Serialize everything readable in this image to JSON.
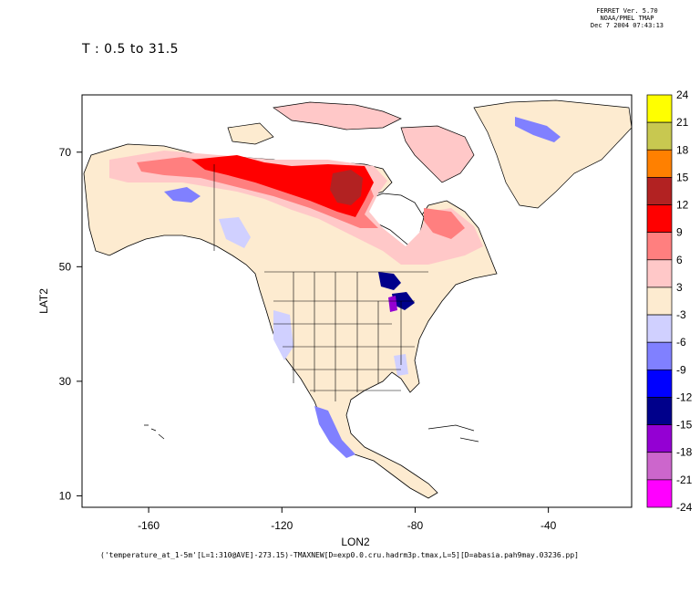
{
  "header": {
    "line1": "FERRET Ver. 5.70",
    "line2": "NOAA/PMEL TMAP",
    "line3": "Dec  7 2004 07:43:13"
  },
  "period_label": "T : 0.5 to 31.5",
  "footer_label": "('temperature_at_1-5m'[L=1:310@AVE]-273.15)-TMAXNEW[D=exp0.0.cru.hadrm3p.tmax,L=5][D=abasia.pah9may.03236.pp]",
  "map": {
    "xlabel": "LON2",
    "ylabel": "LAT2",
    "lon_range": [
      -180,
      -15
    ],
    "lat_range": [
      8,
      80
    ],
    "lon_ticks": [
      "-160",
      "-120",
      "-80",
      "-40"
    ],
    "lon_tick_values": [
      -160,
      -120,
      -80,
      -40
    ],
    "lat_ticks": [
      "70",
      "50",
      "30",
      "10"
    ],
    "lat_tick_values": [
      70,
      50,
      30,
      10
    ]
  },
  "chart_data": {
    "type": "heatmap",
    "xlabel": "LON2",
    "ylabel": "LAT2",
    "colorbar": {
      "labels": [
        "24",
        "21",
        "18",
        "15",
        "12",
        "9",
        "6",
        "3",
        "-3",
        "-6",
        "-9",
        "-12",
        "-15",
        "-18",
        "-21",
        "-24"
      ],
      "colors": [
        "#ffff00",
        "#c8c850",
        "#ff8000",
        "#b22222",
        "#ff0000",
        "#ff7f7f",
        "#ffc8c8",
        "#fdebd0",
        "#d0d0ff",
        "#8080ff",
        "#0000ff",
        "#00008b",
        "#9400d3",
        "#cc66cc",
        "#ff00ff"
      ]
    }
  }
}
